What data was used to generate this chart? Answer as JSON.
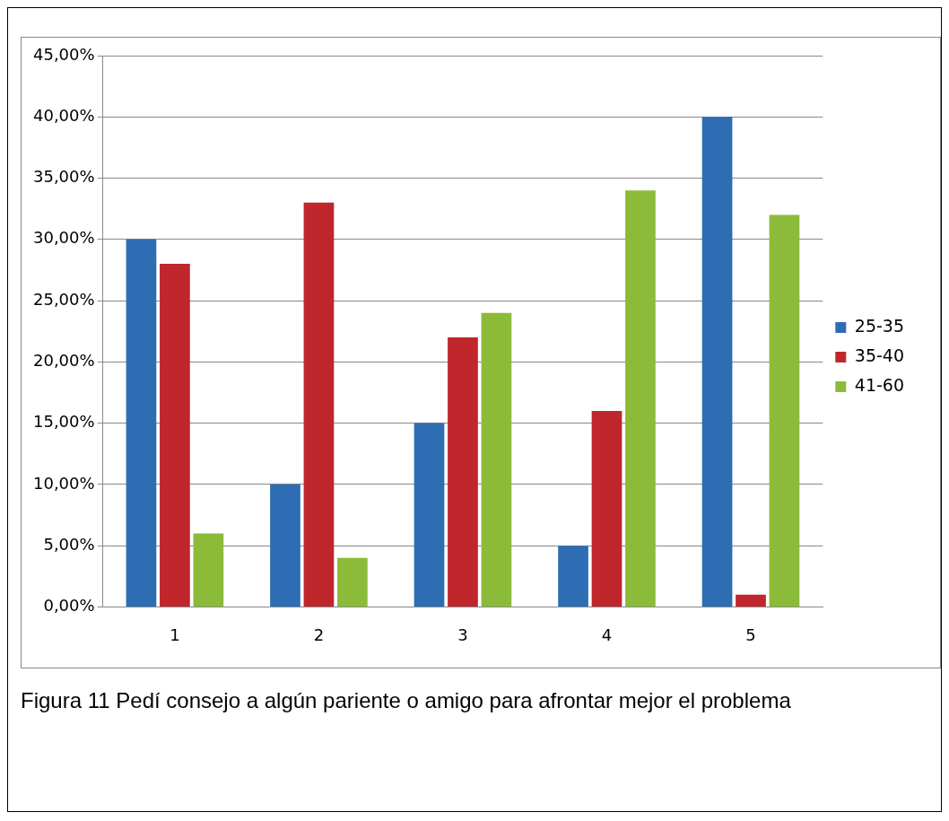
{
  "chart_data": {
    "type": "bar",
    "categories": [
      "1",
      "2",
      "3",
      "4",
      "5"
    ],
    "series": [
      {
        "name": "25-35",
        "color": "#2e6db4",
        "values": [
          30,
          10,
          15,
          5,
          40
        ]
      },
      {
        "name": "35-40",
        "color": "#c0272d",
        "values": [
          28,
          33,
          22,
          16,
          1
        ]
      },
      {
        "name": "41-60",
        "color": "#8cbb3a",
        "values": [
          6,
          4,
          24,
          34,
          32
        ]
      }
    ],
    "ylim": [
      0,
      45
    ],
    "yticks": [
      {
        "value": 0,
        "label": "0,00%"
      },
      {
        "value": 5,
        "label": "5,00%"
      },
      {
        "value": 10,
        "label": "10,00%"
      },
      {
        "value": 15,
        "label": "15,00%"
      },
      {
        "value": 20,
        "label": "20,00%"
      },
      {
        "value": 25,
        "label": "25,00%"
      },
      {
        "value": 30,
        "label": "30,00%"
      },
      {
        "value": 35,
        "label": "35,00%"
      },
      {
        "value": 40,
        "label": "40,00%"
      },
      {
        "value": 45,
        "label": "45,00%"
      }
    ],
    "grid": "y",
    "legend": "right",
    "annotations": [
      "Figura 11 Pedí consejo a algún pariente o amigo para afrontar mejor el problema"
    ]
  }
}
